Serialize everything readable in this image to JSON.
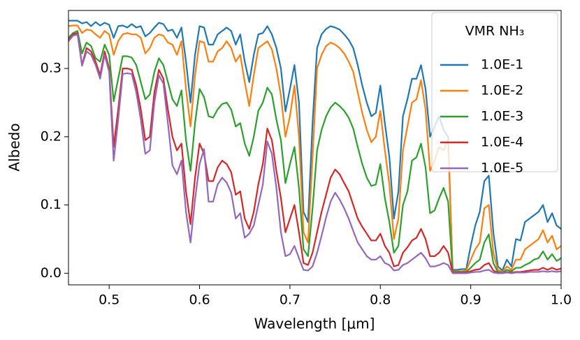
{
  "chart_data": {
    "type": "line",
    "xlabel": "Wavelength [μm]",
    "ylabel": "Albedo",
    "legend_title": "VMR NH₃",
    "legend": "upper right",
    "grid": false,
    "xlim": [
      0.455,
      1.0
    ],
    "ylim": [
      -0.017,
      0.385
    ],
    "xticks": [
      0.5,
      0.6,
      0.7,
      0.8,
      0.9,
      {
        "value": 1,
        "label": "1.0"
      }
    ],
    "yticks": [
      {
        "value": 0,
        "label": "0.0"
      },
      0.1,
      0.2,
      0.3
    ],
    "x": [
      0.455,
      0.46,
      0.465,
      0.47,
      0.475,
      0.48,
      0.485,
      0.49,
      0.495,
      0.5,
      0.505,
      0.51,
      0.515,
      0.52,
      0.525,
      0.53,
      0.535,
      0.54,
      0.545,
      0.55,
      0.555,
      0.56,
      0.565,
      0.57,
      0.575,
      0.58,
      0.585,
      0.59,
      0.595,
      0.6,
      0.605,
      0.61,
      0.615,
      0.62,
      0.625,
      0.63,
      0.635,
      0.64,
      0.645,
      0.65,
      0.655,
      0.66,
      0.665,
      0.67,
      0.675,
      0.68,
      0.685,
      0.69,
      0.695,
      0.7,
      0.705,
      0.71,
      0.715,
      0.72,
      0.725,
      0.73,
      0.735,
      0.74,
      0.745,
      0.75,
      0.755,
      0.76,
      0.765,
      0.77,
      0.775,
      0.78,
      0.785,
      0.79,
      0.795,
      0.8,
      0.805,
      0.81,
      0.815,
      0.82,
      0.825,
      0.83,
      0.835,
      0.84,
      0.845,
      0.85,
      0.855,
      0.86,
      0.865,
      0.87,
      0.875,
      0.88,
      0.885,
      0.89,
      0.895,
      0.9,
      0.905,
      0.91,
      0.915,
      0.92,
      0.925,
      0.93,
      0.935,
      0.94,
      0.945,
      0.95,
      0.955,
      0.96,
      0.965,
      0.97,
      0.975,
      0.98,
      0.985,
      0.99,
      0.995,
      1.0
    ],
    "series": [
      {
        "name": "1.0E-1",
        "color": "#1f77b4",
        "values": [
          0.37,
          0.37,
          0.37,
          0.366,
          0.368,
          0.362,
          0.368,
          0.363,
          0.367,
          0.364,
          0.345,
          0.362,
          0.363,
          0.36,
          0.365,
          0.36,
          0.362,
          0.347,
          0.352,
          0.36,
          0.367,
          0.365,
          0.355,
          0.357,
          0.345,
          0.36,
          0.31,
          0.25,
          0.32,
          0.362,
          0.36,
          0.335,
          0.335,
          0.35,
          0.355,
          0.36,
          0.355,
          0.335,
          0.35,
          0.31,
          0.28,
          0.32,
          0.35,
          0.352,
          0.362,
          0.35,
          0.33,
          0.3,
          0.237,
          0.27,
          0.305,
          0.25,
          0.09,
          0.075,
          0.22,
          0.33,
          0.35,
          0.358,
          0.362,
          0.36,
          0.357,
          0.35,
          0.342,
          0.33,
          0.305,
          0.275,
          0.25,
          0.23,
          0.235,
          0.275,
          0.22,
          0.17,
          0.08,
          0.12,
          0.23,
          0.255,
          0.285,
          0.285,
          0.305,
          0.27,
          0.2,
          0.215,
          0.23,
          0.21,
          0.2,
          0.005,
          0.005,
          0.006,
          0.006,
          0.04,
          0.07,
          0.09,
          0.135,
          0.143,
          0.06,
          0.01,
          0.004,
          0.02,
          0.01,
          0.05,
          0.048,
          0.075,
          0.08,
          0.085,
          0.09,
          0.1,
          0.075,
          0.088,
          0.07,
          0.065
        ]
      },
      {
        "name": "1.0E-2",
        "color": "#ff7f0e",
        "values": [
          0.362,
          0.363,
          0.363,
          0.352,
          0.357,
          0.356,
          0.35,
          0.345,
          0.355,
          0.35,
          0.32,
          0.34,
          0.35,
          0.352,
          0.35,
          0.35,
          0.345,
          0.322,
          0.33,
          0.345,
          0.35,
          0.348,
          0.338,
          0.335,
          0.32,
          0.34,
          0.27,
          0.215,
          0.29,
          0.34,
          0.338,
          0.31,
          0.31,
          0.325,
          0.33,
          0.34,
          0.33,
          0.31,
          0.32,
          0.28,
          0.245,
          0.29,
          0.33,
          0.335,
          0.34,
          0.328,
          0.3,
          0.26,
          0.2,
          0.23,
          0.275,
          0.2,
          0.06,
          0.045,
          0.17,
          0.3,
          0.32,
          0.333,
          0.338,
          0.335,
          0.33,
          0.322,
          0.31,
          0.295,
          0.265,
          0.235,
          0.21,
          0.192,
          0.2,
          0.238,
          0.18,
          0.13,
          0.05,
          0.08,
          0.18,
          0.215,
          0.25,
          0.255,
          0.283,
          0.24,
          0.15,
          0.165,
          0.185,
          0.18,
          0.195,
          0.003,
          0.003,
          0.003,
          0.004,
          0.02,
          0.035,
          0.045,
          0.095,
          0.1,
          0.03,
          0.005,
          0.002,
          0.01,
          0.005,
          0.02,
          0.02,
          0.035,
          0.04,
          0.045,
          0.05,
          0.063,
          0.045,
          0.055,
          0.035,
          0.04
        ]
      },
      {
        "name": "1.0E-3",
        "color": "#2ca02c",
        "values": [
          0.345,
          0.352,
          0.355,
          0.322,
          0.338,
          0.333,
          0.315,
          0.31,
          0.335,
          0.32,
          0.252,
          0.285,
          0.318,
          0.318,
          0.316,
          0.305,
          0.28,
          0.255,
          0.262,
          0.295,
          0.315,
          0.305,
          0.28,
          0.255,
          0.245,
          0.268,
          0.195,
          0.15,
          0.22,
          0.27,
          0.258,
          0.23,
          0.228,
          0.24,
          0.248,
          0.25,
          0.24,
          0.215,
          0.22,
          0.19,
          0.172,
          0.2,
          0.238,
          0.25,
          0.272,
          0.262,
          0.225,
          0.195,
          0.132,
          0.16,
          0.185,
          0.125,
          0.035,
          0.025,
          0.095,
          0.18,
          0.21,
          0.23,
          0.243,
          0.25,
          0.245,
          0.238,
          0.228,
          0.212,
          0.185,
          0.16,
          0.14,
          0.128,
          0.13,
          0.16,
          0.11,
          0.075,
          0.03,
          0.04,
          0.1,
          0.12,
          0.165,
          0.17,
          0.19,
          0.155,
          0.088,
          0.092,
          0.11,
          0.125,
          0.105,
          0.002,
          0.002,
          0.002,
          0.002,
          0.008,
          0.015,
          0.02,
          0.045,
          0.057,
          0.015,
          0.002,
          0.001,
          0.005,
          0.003,
          0.008,
          0.008,
          0.012,
          0.015,
          0.02,
          0.022,
          0.032,
          0.02,
          0.028,
          0.018,
          0.022
        ]
      },
      {
        "name": "1.0E-4",
        "color": "#d62728",
        "values": [
          0.342,
          0.35,
          0.352,
          0.305,
          0.33,
          0.325,
          0.31,
          0.29,
          0.325,
          0.3,
          0.185,
          0.24,
          0.3,
          0.3,
          0.298,
          0.275,
          0.24,
          0.195,
          0.2,
          0.265,
          0.298,
          0.285,
          0.24,
          0.2,
          0.18,
          0.19,
          0.12,
          0.072,
          0.14,
          0.19,
          0.175,
          0.135,
          0.135,
          0.155,
          0.165,
          0.16,
          0.148,
          0.115,
          0.12,
          0.08,
          0.065,
          0.09,
          0.13,
          0.16,
          0.212,
          0.195,
          0.15,
          0.11,
          0.06,
          0.08,
          0.1,
          0.06,
          0.015,
          0.012,
          0.03,
          0.06,
          0.09,
          0.115,
          0.14,
          0.152,
          0.145,
          0.132,
          0.12,
          0.1,
          0.08,
          0.068,
          0.058,
          0.048,
          0.048,
          0.058,
          0.04,
          0.03,
          0.01,
          0.012,
          0.03,
          0.038,
          0.048,
          0.052,
          0.065,
          0.05,
          0.025,
          0.025,
          0.03,
          0.04,
          0.03,
          0.001,
          0.001,
          0.001,
          0.001,
          0.003,
          0.005,
          0.006,
          0.012,
          0.015,
          0.004,
          0.001,
          0.0,
          0.002,
          0.001,
          0.002,
          0.002,
          0.003,
          0.004,
          0.005,
          0.005,
          0.008,
          0.005,
          0.008,
          0.005,
          0.007
        ]
      },
      {
        "name": "1.0E-5",
        "color": "#9467bd",
        "values": [
          0.34,
          0.348,
          0.35,
          0.304,
          0.325,
          0.32,
          0.305,
          0.285,
          0.32,
          0.295,
          0.165,
          0.225,
          0.292,
          0.293,
          0.292,
          0.265,
          0.225,
          0.175,
          0.18,
          0.25,
          0.29,
          0.278,
          0.22,
          0.158,
          0.145,
          0.165,
          0.09,
          0.045,
          0.108,
          0.16,
          0.182,
          0.105,
          0.105,
          0.13,
          0.14,
          0.133,
          0.118,
          0.08,
          0.088,
          0.052,
          0.058,
          0.07,
          0.1,
          0.13,
          0.193,
          0.175,
          0.125,
          0.06,
          0.025,
          0.028,
          0.04,
          0.022,
          0.005,
          0.004,
          0.01,
          0.03,
          0.055,
          0.082,
          0.105,
          0.118,
          0.108,
          0.095,
          0.08,
          0.062,
          0.045,
          0.035,
          0.025,
          0.02,
          0.02,
          0.025,
          0.015,
          0.012,
          0.004,
          0.005,
          0.012,
          0.015,
          0.02,
          0.025,
          0.03,
          0.022,
          0.01,
          0.01,
          0.012,
          0.015,
          0.012,
          0.0,
          0.0,
          0.0,
          0.0,
          0.001,
          0.002,
          0.002,
          0.004,
          0.005,
          0.001,
          0.0,
          0.0,
          0.001,
          0.0,
          0.001,
          0.001,
          0.001,
          0.002,
          0.002,
          0.002,
          0.003,
          0.002,
          0.003,
          0.002,
          0.003
        ]
      }
    ]
  }
}
